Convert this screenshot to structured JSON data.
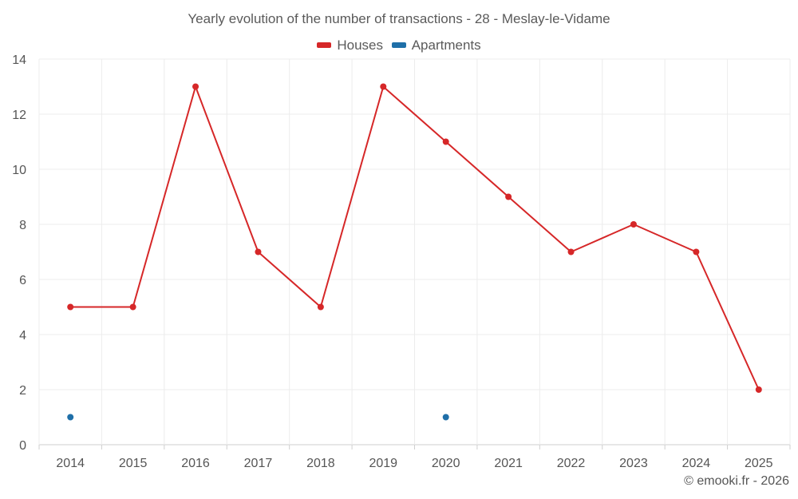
{
  "chart_data": {
    "type": "line",
    "title": "Yearly evolution of the number of transactions - 28 - Meslay-le-Vidame",
    "categories": [
      "2014",
      "2015",
      "2016",
      "2017",
      "2018",
      "2019",
      "2020",
      "2021",
      "2022",
      "2023",
      "2024",
      "2025"
    ],
    "series": [
      {
        "name": "Houses",
        "color": "#d62728",
        "values": [
          5,
          5,
          13,
          7,
          5,
          13,
          11,
          9,
          7,
          8,
          7,
          2
        ]
      },
      {
        "name": "Apartments",
        "color": "#1f6fa8",
        "values": [
          1,
          null,
          null,
          null,
          null,
          null,
          1,
          null,
          null,
          null,
          null,
          null
        ]
      }
    ],
    "ylim": [
      0,
      14
    ],
    "yticks": [
      0,
      2,
      4,
      6,
      8,
      10,
      12,
      14
    ],
    "grid": true,
    "legend_position": "top-center",
    "xlabel": "",
    "ylabel": ""
  },
  "credit": "© emooki.fr - 2026"
}
